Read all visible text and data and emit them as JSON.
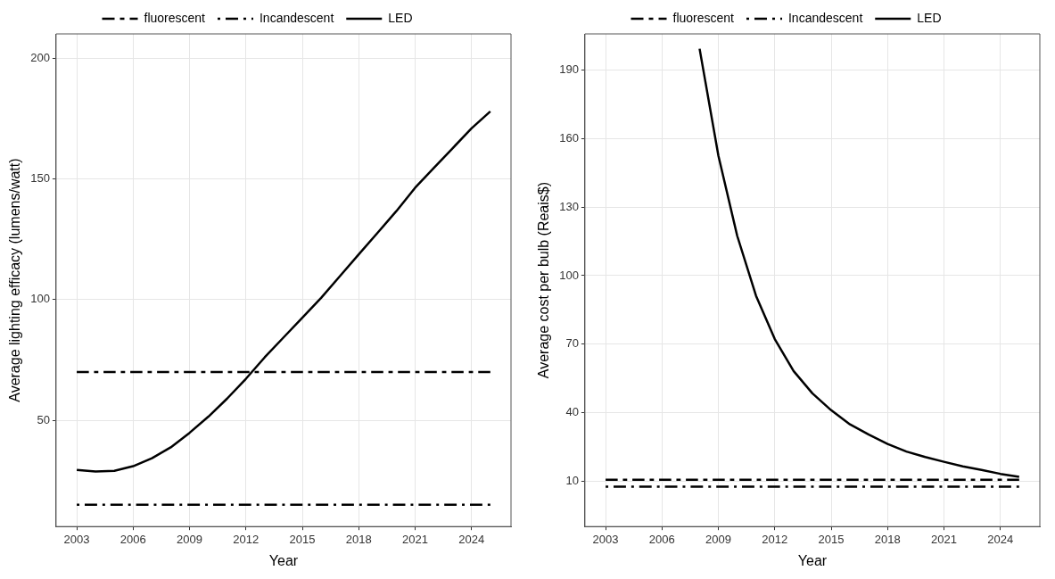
{
  "chart_data": [
    {
      "type": "line",
      "xlabel": "Year",
      "ylabel": "Average lighting efficacy (lumens/watt)",
      "xlim": [
        2001.9,
        2026.1
      ],
      "xticks": [
        2003,
        2006,
        2009,
        2012,
        2015,
        2018,
        2021,
        2024
      ],
      "ylim": [
        6,
        210
      ],
      "yticks": [
        50,
        100,
        150,
        200
      ],
      "grid": true,
      "legend": "top",
      "marker": "none",
      "series": [
        {
          "name": "fluorescent",
          "color": "#000000",
          "line_style": "dashed",
          "x": [
            2003,
            2025
          ],
          "values": [
            70,
            70
          ]
        },
        {
          "name": "Incandescent",
          "color": "#000000",
          "line_style": "dotted",
          "x": [
            2003,
            2025
          ],
          "values": [
            15,
            15
          ]
        },
        {
          "name": "LED",
          "color": "#000000",
          "line_style": "solid",
          "x": [
            2003,
            2004,
            2005,
            2006,
            2007,
            2008,
            2009,
            2010,
            2011,
            2012,
            2013,
            2014,
            2015,
            2016,
            2017,
            2018,
            2019,
            2020,
            2021,
            2022,
            2023,
            2024,
            2025
          ],
          "values": [
            29.4,
            28.8,
            29.1,
            31,
            34.3,
            38.8,
            44.8,
            51.5,
            59,
            67.2,
            76.1,
            84.3,
            92.5,
            100.7,
            109.7,
            118.7,
            127.6,
            136.6,
            146.3,
            154.5,
            162.7,
            170.9,
            177.9
          ]
        }
      ]
    },
    {
      "type": "line",
      "xlabel": "Year",
      "ylabel": "Average cost per bulb (Reais$)",
      "xlim": [
        2001.9,
        2026.1
      ],
      "xticks": [
        2003,
        2006,
        2009,
        2012,
        2015,
        2018,
        2021,
        2024
      ],
      "ylim": [
        -10,
        206
      ],
      "yticks": [
        10,
        40,
        70,
        100,
        130,
        160,
        190
      ],
      "grid": true,
      "legend": "top",
      "marker": "none",
      "series": [
        {
          "name": "fluorescent",
          "color": "#000000",
          "line_style": "dashed",
          "x": [
            2003,
            2025
          ],
          "values": [
            10.5,
            10.5
          ]
        },
        {
          "name": "Incandescent",
          "color": "#000000",
          "line_style": "dotted",
          "x": [
            2003,
            2025
          ],
          "values": [
            7.5,
            7.5
          ]
        },
        {
          "name": "LED",
          "color": "#000000",
          "line_style": "solid",
          "x": [
            2008,
            2009,
            2010,
            2011,
            2012,
            2013,
            2014,
            2015,
            2016,
            2017,
            2018,
            2019,
            2020,
            2021,
            2022,
            2023,
            2024,
            2025
          ],
          "values": [
            199.5,
            152.6,
            117.5,
            91.2,
            72.2,
            58.2,
            48.4,
            41,
            34.8,
            30.3,
            26.2,
            22.9,
            20.5,
            18.4,
            16.4,
            14.8,
            13.1,
            11.8
          ]
        }
      ]
    }
  ]
}
